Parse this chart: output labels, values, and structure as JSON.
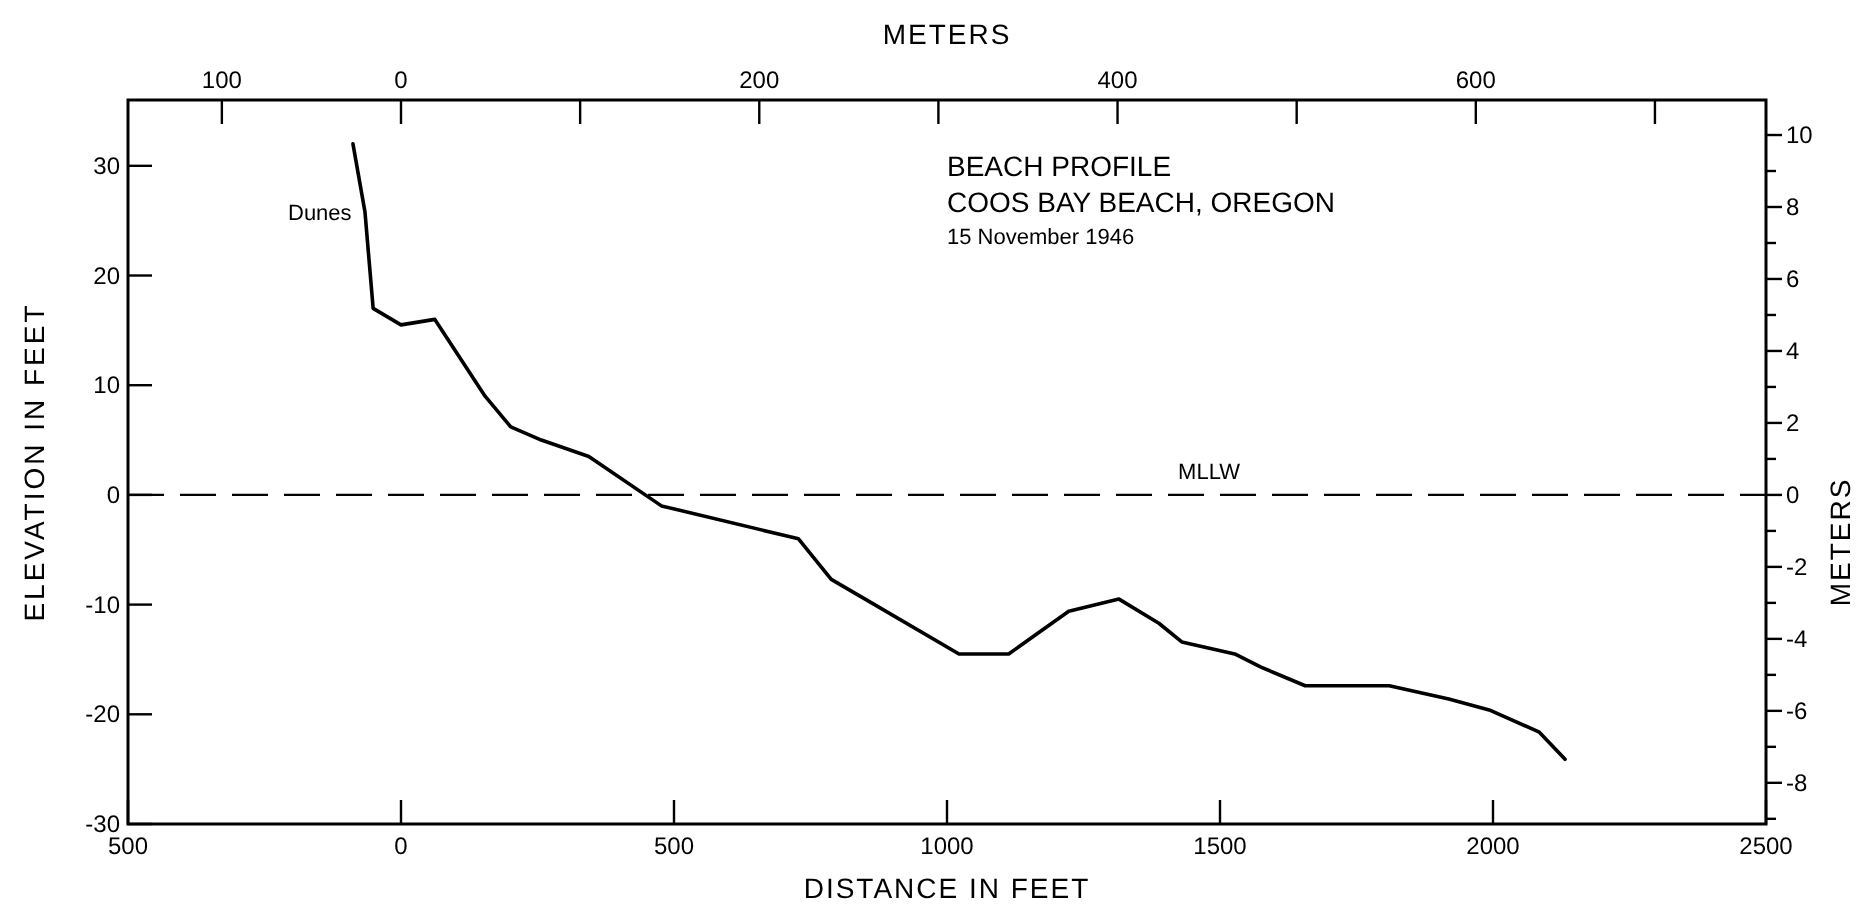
{
  "chart_data": {
    "type": "line",
    "title": "BEACH PROFILE",
    "subtitle": "COOS BAY BEACH, OREGON",
    "xlabel": "DISTANCE IN FEET",
    "ylabel": "ELEVATION IN FEET",
    "x2label": "METERS",
    "y2label": "METERS",
    "annotations": [
      "15 November 1946",
      "Dunes"
    ],
    "x": [
      -88,
      -66,
      -51,
      0,
      62,
      154,
      201,
      257,
      344,
      477,
      728,
      788,
      843,
      1022,
      1113,
      1223,
      1315,
      1388,
      1430,
      1527,
      1575,
      1656,
      1810,
      1919,
      1993,
      2084,
      2132
    ],
    "series": [
      {
        "color": "#000000",
        "values": [
          32,
          25.8,
          17,
          15.5,
          16,
          9,
          6.2,
          5,
          3.5,
          -1,
          -4,
          -7.7,
          -9.3,
          -14.5,
          -14.5,
          -10.6,
          -9.5,
          -11.7,
          -13.4,
          -14.5,
          -15.7,
          -17.4,
          -17.4,
          -18.6,
          -19.6,
          -21.6,
          -24.1
        ]
      }
    ],
    "xlim": [
      -500,
      2500
    ],
    "xticks": [
      {
        "value": -500,
        "label": "500"
      },
      0,
      500,
      1000,
      1500,
      2000,
      2500
    ],
    "ylim": [
      -30,
      36
    ],
    "yticks": [
      -30,
      -20,
      -10,
      0,
      10,
      20,
      30
    ],
    "x2lim": [
      -152.4,
      762
    ],
    "x2ticks": [
      {
        "value": -100,
        "label": "100"
      },
      0,
      {
        "value": 100,
        "label": null
      },
      200,
      {
        "value": 300,
        "label": null
      },
      400,
      {
        "value": 500,
        "label": null
      },
      600,
      {
        "value": 700,
        "label": null
      }
    ],
    "y2lim": [
      -9.144,
      10.973
    ],
    "y2ticks": [
      {
        "value": -9,
        "label": null
      },
      -8,
      {
        "value": -7,
        "label": null
      },
      -6,
      {
        "value": -5,
        "label": null
      },
      -4,
      {
        "value": -3,
        "label": null
      },
      -2,
      {
        "value": -1,
        "label": null
      },
      0,
      {
        "value": 1,
        "label": null
      },
      2,
      {
        "value": 3,
        "label": null
      },
      4,
      {
        "value": 5,
        "label": null
      },
      6,
      {
        "value": 7,
        "label": null
      },
      8,
      {
        "value": 9,
        "label": null
      },
      10
    ],
    "ref_lines": [
      {
        "axis": "y",
        "value": 0,
        "label": "MLLW",
        "line_style": "dashed",
        "color": "#000000"
      }
    ],
    "marker": "none",
    "line_style": "solid",
    "grid": false
  }
}
